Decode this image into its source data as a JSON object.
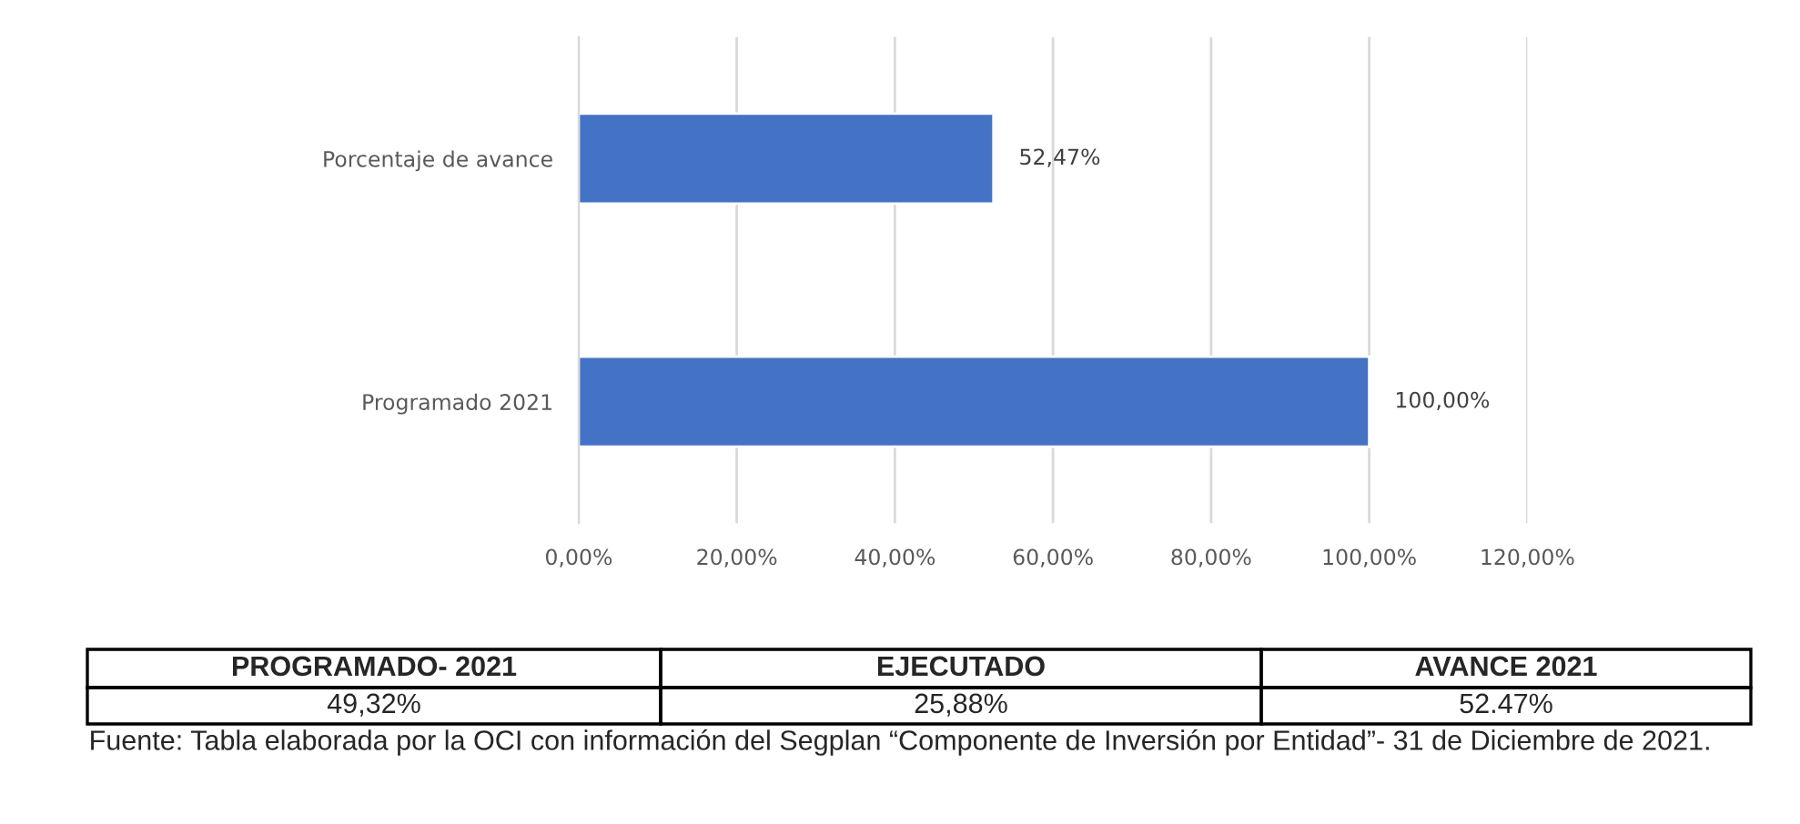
{
  "chart_data": {
    "type": "bar",
    "orientation": "horizontal",
    "categories": [
      "Porcentaje de avance",
      "Programado 2021"
    ],
    "values": [
      52.47,
      100
    ],
    "color": "#4472c4",
    "value_labels": [
      "52,47%",
      "100,00%"
    ],
    "xlim": [
      0,
      120
    ],
    "xticks": [
      {
        "value": 0,
        "label": "0,00%"
      },
      {
        "value": 20,
        "label": "20,00%"
      },
      {
        "value": 40,
        "label": "40,00%"
      },
      {
        "value": 60,
        "label": "60,00%"
      },
      {
        "value": 80,
        "label": "80,00%"
      },
      {
        "value": 100,
        "label": "100,00%"
      },
      {
        "value": 120,
        "label": "120,00%"
      }
    ],
    "grid": "x",
    "legend": false,
    "annotations": [
      "PROGRAMADO- 2021",
      "EJECUTADO",
      "AVANCE 2021",
      "49,32%",
      "25,88%",
      "52.47%",
      "Fuente: Tabla elaborada por la OCI con información del Segplan “Componente de Inversión por Entidad”- 31 de Diciembre de 2021."
    ]
  }
}
